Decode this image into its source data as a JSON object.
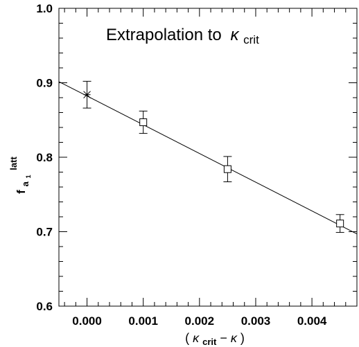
{
  "chart_data": {
    "type": "scatter",
    "title": "Extrapolation to",
    "title_symbol": "κ",
    "title_subscript": "crit",
    "xlabel": {
      "open": "(",
      "kappa1": "κ",
      "sub": "crit",
      "minus": "−",
      "kappa2": "κ",
      "close": ")"
    },
    "ylabel": {
      "base": "f",
      "sub": "a",
      "subsub": "1",
      "sup": "latt"
    },
    "xlim": [
      -0.0005,
      0.0048
    ],
    "ylim": [
      0.6,
      1.0
    ],
    "x_ticks": [
      {
        "value": 0.0,
        "label": "0.000"
      },
      {
        "value": 0.001,
        "label": "0.001"
      },
      {
        "value": 0.002,
        "label": "0.002"
      },
      {
        "value": 0.003,
        "label": "0.003"
      },
      {
        "value": 0.004,
        "label": "0.004"
      }
    ],
    "y_ticks": [
      {
        "value": 0.6,
        "label": "0.6"
      },
      {
        "value": 0.7,
        "label": "0.7"
      },
      {
        "value": 0.8,
        "label": "0.8"
      },
      {
        "value": 0.9,
        "label": "0.9"
      },
      {
        "value": 1.0,
        "label": "1.0"
      }
    ],
    "x_minor_step": 0.0002,
    "y_minor_step": 0.02,
    "grid": false,
    "series": [
      {
        "marker": "square",
        "points": [
          {
            "x": 0.001,
            "y": 0.847,
            "err_low": 0.832,
            "err_high": 0.862
          },
          {
            "x": 0.0025,
            "y": 0.784,
            "err_low": 0.767,
            "err_high": 0.801
          },
          {
            "x": 0.0045,
            "y": 0.711,
            "err_low": 0.699,
            "err_high": 0.723
          }
        ]
      },
      {
        "marker": "star",
        "points": [
          {
            "x": 0.0,
            "y": 0.884,
            "err_low": 0.866,
            "err_high": 0.902
          }
        ]
      }
    ],
    "fit_line": {
      "x0": -0.0005,
      "y0": 0.9015,
      "x1": 0.0048,
      "y1": 0.697
    }
  }
}
